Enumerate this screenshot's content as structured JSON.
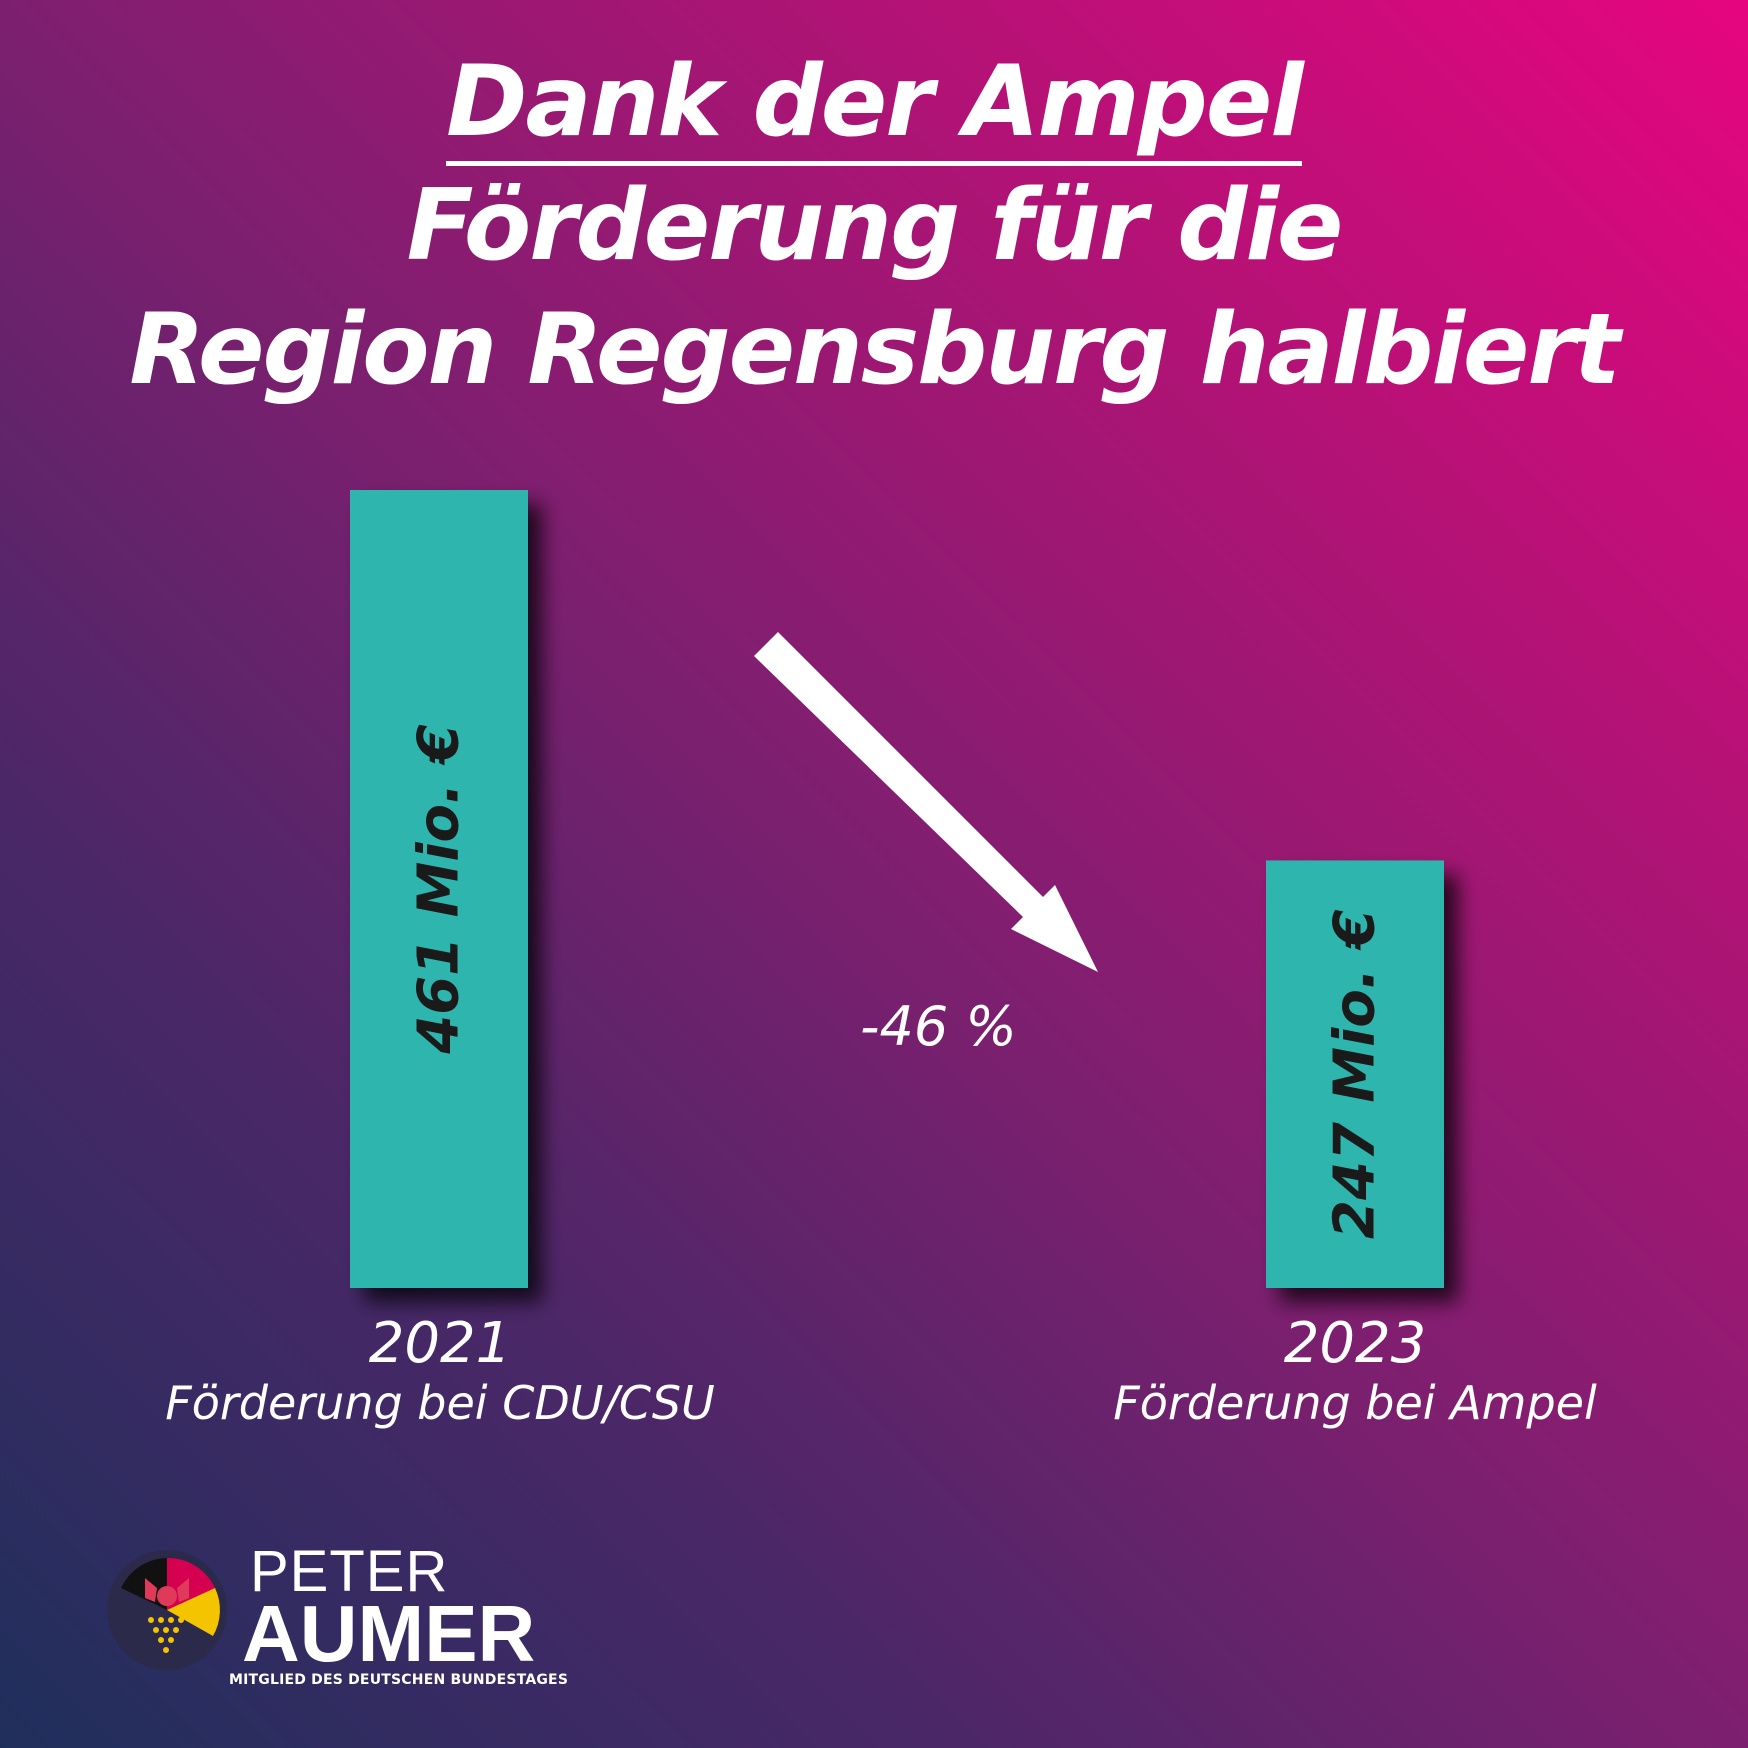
{
  "title": {
    "line1": "Dank der Ampel",
    "line2": "Förderung für die",
    "line3": "Region Regensburg halbiert"
  },
  "chart_data": {
    "type": "bar",
    "categories": [
      "2021",
      "2023"
    ],
    "category_subtitles": [
      "Förderung bei CDU/CSU",
      "Förderung bei Ampel"
    ],
    "values": [
      461,
      247
    ],
    "value_labels": [
      "461 Mio. €",
      "247 Mio. €"
    ],
    "unit": "Mio. €",
    "annotation": "-46 %",
    "title": "Dank der Ampel Förderung für die Region Regensburg halbiert",
    "xlabel": "",
    "ylabel": "",
    "grid": false,
    "legend": "none"
  },
  "brand": {
    "first_name": "PETER",
    "last_name": "AUMER",
    "subtitle": "MITGLIED DES DEUTSCHEN BUNDESTAGES"
  },
  "colors": {
    "bar": "#2fb5ae",
    "bar_label": "#1a1a1a",
    "accent_pink": "#e6057f",
    "accent_navy": "#1f2f5c",
    "text": "#ffffff"
  }
}
